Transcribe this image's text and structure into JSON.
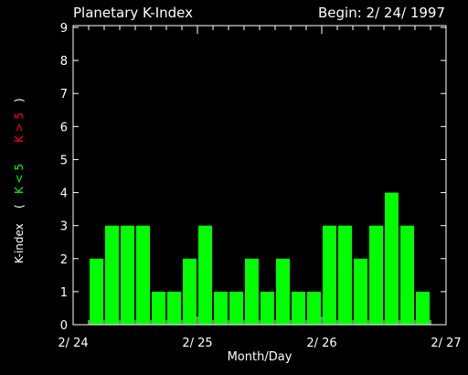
{
  "title": "Planetary K-Index",
  "begin_label": "Begin:  2/ 24/  1997",
  "ylabel_main": "K-index",
  "ylabel_open": "(",
  "ylabel_green": "K < 5",
  "ylabel_red": "K > 5",
  "ylabel_close": ")",
  "colors": {
    "background": "#000000",
    "foreground": "#ffffff",
    "bar_normal": "#00ff00",
    "bar_storm": "#ff0000"
  },
  "chart_data": {
    "type": "bar",
    "title": "Planetary K-Index",
    "xlabel": "Month/Day",
    "ylabel": "K-index",
    "ylim": [
      0,
      9
    ],
    "yticks": [
      0,
      1,
      2,
      3,
      4,
      5,
      6,
      7,
      8,
      9
    ],
    "xlim": [
      0,
      3
    ],
    "xticks": [
      {
        "pos": 0,
        "label": "2/ 24"
      },
      {
        "pos": 1,
        "label": "2/ 25"
      },
      {
        "pos": 2,
        "label": "2/ 26"
      },
      {
        "pos": 3,
        "label": "2/ 27"
      }
    ],
    "values": [
      2,
      3,
      3,
      3,
      1,
      1,
      2,
      3,
      1,
      1,
      2,
      1,
      2,
      1,
      1,
      3,
      3,
      2,
      3,
      4,
      3,
      1
    ],
    "threshold": 5
  }
}
